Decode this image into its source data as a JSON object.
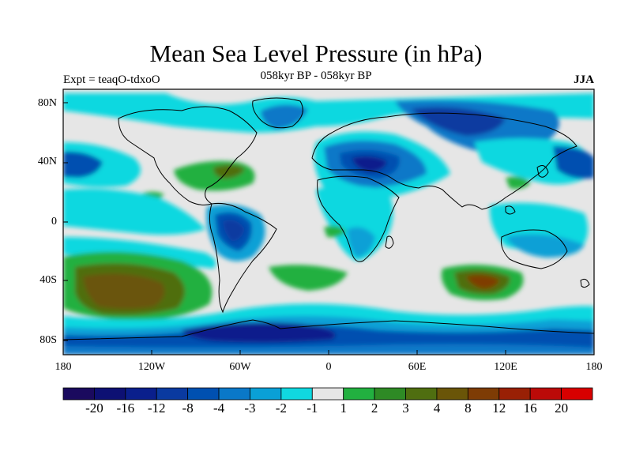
{
  "title": "Mean Sea Level Pressure (in hPa)",
  "experiment": "Expt = teaqO-tdxoO",
  "period": "058kyr BP - 058kyr BP",
  "season": "JJA",
  "lat_labels": [
    "80N",
    "40N",
    "0",
    "40S",
    "80S"
  ],
  "lon_labels": [
    "180",
    "120W",
    "60W",
    "0",
    "60E",
    "120E",
    "180"
  ],
  "colorbar": {
    "colors": [
      "#1a0a5e",
      "#0d1073",
      "#0a1f8c",
      "#0a3aa0",
      "#0050b0",
      "#0a78c8",
      "#0aa0d6",
      "#10d8e0",
      "#e6e6e6",
      "#22b040",
      "#2e8a25",
      "#4f6e10",
      "#6a5508",
      "#7e3c05",
      "#992005",
      "#bb0a08",
      "#d80000"
    ],
    "labels": [
      "-20",
      "-16",
      "-12",
      "-8",
      "-4",
      "-3",
      "-2",
      "-1",
      "1",
      "2",
      "3",
      "4",
      "8",
      "12",
      "16",
      "20"
    ]
  },
  "colors": {
    "land_outline": "#000000",
    "background": "#e6e6e6"
  }
}
